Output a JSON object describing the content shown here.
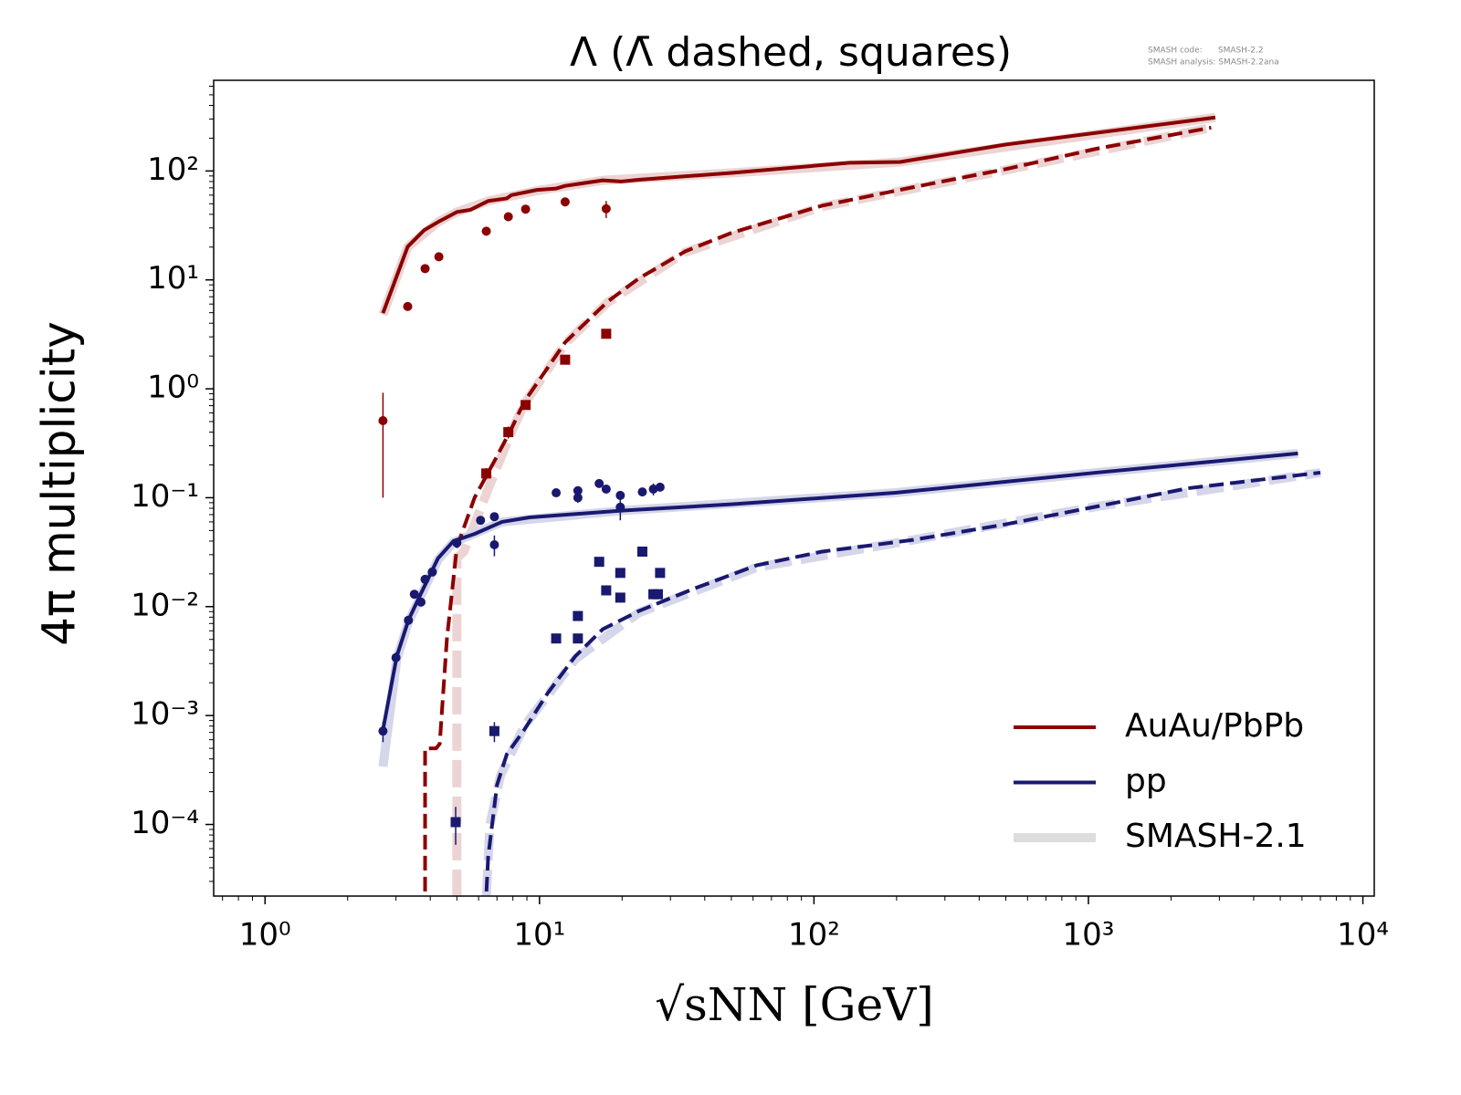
{
  "chart_data": {
    "type": "line",
    "title": "Λ (Λ̄ dashed, squares)",
    "notes": [
      "SMASH code:      SMASH-2.2",
      "SMASH analysis: SMASH-2.2ana"
    ],
    "x_label": "√sNN [GeV]",
    "y_label": "4π multiplicity",
    "log_x": true,
    "log_y": true,
    "xlim": [
      0.65,
      11000
    ],
    "ylim": [
      2.2e-05,
      680
    ],
    "xticks": [
      {
        "value": 1,
        "label": "10⁰"
      },
      {
        "value": 10,
        "label": "10¹"
      },
      {
        "value": 100,
        "label": "10²"
      },
      {
        "value": 1000,
        "label": "10³"
      },
      {
        "value": 10000,
        "label": "10⁴"
      }
    ],
    "yticks": [
      {
        "value": 0.0001,
        "label": "10⁻⁴"
      },
      {
        "value": 0.001,
        "label": "10⁻³"
      },
      {
        "value": 0.01,
        "label": "10⁻²"
      },
      {
        "value": 0.1,
        "label": "10⁻¹"
      },
      {
        "value": 1,
        "label": "10⁰"
      },
      {
        "value": 10,
        "label": "10¹"
      },
      {
        "value": 100,
        "label": "10²"
      }
    ],
    "legend_position": "lower right",
    "legend": [
      {
        "name": "AuAu/PbPb",
        "color": "#8b0000"
      },
      {
        "name": "pp",
        "color": "#191970"
      },
      {
        "name": "SMASH-2.1",
        "color": "#dddddd"
      }
    ],
    "series": [
      {
        "color": "#ecd4d4",
        "line": "solid",
        "thick": true,
        "x": [
          2.69,
          3.31,
          4.27,
          5.0,
          6.5,
          9.8,
          17,
          50,
          206,
          2900
        ],
        "values": [
          4.8,
          20,
          34,
          42,
          53,
          66,
          82,
          96,
          121,
          310
        ]
      },
      {
        "color": "#ecd4d4",
        "line": "dashed",
        "thick": true,
        "x": [
          5.0,
          5.0,
          5.3,
          6.5,
          7.9,
          8.8,
          12.4,
          17.7,
          34,
          107,
          500,
          2800
        ],
        "values": [
          1e-05,
          0.028,
          0.032,
          0.12,
          0.4,
          0.72,
          2.6,
          6.2,
          18,
          47,
          102,
          250
        ]
      },
      {
        "color": "#d6d6ea",
        "line": "solid",
        "thick": true,
        "x": [
          2.69,
          3.02,
          3.33,
          4.27,
          4.86,
          7.3,
          19.8,
          198,
          1070,
          5800
        ],
        "values": [
          0.00034,
          0.0033,
          0.0072,
          0.027,
          0.039,
          0.06,
          0.076,
          0.111,
          0.17,
          0.255
        ]
      },
      {
        "color": "#d6d6ea",
        "line": "dashed",
        "thick": true,
        "x": [
          6.3,
          6.6,
          7.2,
          8.8,
          13.5,
          23,
          62,
          230,
          1070,
          7000
        ],
        "values": [
          1e-05,
          0.0001,
          0.00028,
          0.0008,
          0.0033,
          0.0088,
          0.023,
          0.041,
          0.083,
          0.17
        ]
      },
      {
        "color": "#8b0000",
        "line": "solid",
        "x": [
          2.69,
          3.31,
          3.8,
          4.27,
          5.0,
          5.6,
          6.5,
          7.6,
          7.9,
          9.8,
          11.5,
          12.4,
          17,
          19.8,
          23,
          50,
          135,
          206,
          500,
          2900
        ],
        "values": [
          4.95,
          20.2,
          28.6,
          34,
          42,
          44,
          53,
          56,
          60,
          67,
          69,
          73,
          82,
          80,
          83,
          96,
          119,
          121,
          175,
          310
        ]
      },
      {
        "color": "#8b0000",
        "line": "dashed",
        "x": [
          3.83,
          3.83,
          4.2,
          4.33,
          4.6,
          5.0,
          5.8,
          7.0,
          7.9,
          8.8,
          12.4,
          17.7,
          23,
          34,
          50,
          107,
          230,
          500,
          1070,
          2800
        ],
        "values": [
          1e-05,
          0.0005,
          0.0005,
          0.00055,
          0.0051,
          0.035,
          0.1,
          0.24,
          0.43,
          0.76,
          2.67,
          6.3,
          10.3,
          18.3,
          27,
          48,
          71,
          104,
          160,
          250
        ]
      },
      {
        "color": "#191970",
        "line": "solid",
        "x": [
          2.69,
          3.02,
          3.33,
          3.71,
          4.27,
          4.86,
          5.8,
          7.3,
          9.2,
          19.8,
          50,
          198,
          1070,
          5800
        ],
        "values": [
          0.00074,
          0.0035,
          0.0075,
          0.0134,
          0.0278,
          0.04,
          0.0465,
          0.06,
          0.066,
          0.076,
          0.087,
          0.111,
          0.17,
          0.255
        ]
      },
      {
        "color": "#191970",
        "line": "dashed",
        "x": [
          6.3,
          6.5,
          7.0,
          7.6,
          8.8,
          10.7,
          13.5,
          17,
          23,
          36.5,
          62,
          107,
          230,
          500,
          1070,
          2300,
          7000
        ],
        "values": [
          1e-05,
          5e-05,
          0.00023,
          0.00044,
          0.00074,
          0.0016,
          0.0035,
          0.0062,
          0.0091,
          0.0146,
          0.024,
          0.032,
          0.041,
          0.057,
          0.083,
          0.122,
          0.17
        ]
      },
      {
        "color": "#8b0000",
        "marker": "circle",
        "x": [
          2.69,
          3.31,
          3.83,
          4.3,
          6.4,
          7.7,
          8.9,
          12.4,
          17.5
        ],
        "values": [
          0.51,
          5.7,
          12.7,
          16.3,
          28,
          38,
          44.6,
          52,
          45
        ],
        "errors": [
          0.41,
          null,
          null,
          null,
          2,
          2,
          2,
          4,
          8
        ]
      },
      {
        "color": "#8b0000",
        "marker": "square",
        "x": [
          6.4,
          7.7,
          8.9,
          12.4,
          17.5
        ],
        "values": [
          0.167,
          0.4,
          0.71,
          1.85,
          3.2
        ],
        "errors": [
          0.02,
          0.05,
          null,
          null,
          null
        ]
      },
      {
        "color": "#191970",
        "marker": "circle",
        "x": [
          2.69,
          3.0,
          3.33,
          3.5,
          3.7,
          3.83,
          4.07,
          5.0,
          6.1,
          6.85,
          6.85,
          11.5,
          13.8,
          13.8,
          16.5,
          17.5,
          19.7,
          19.7,
          23.7,
          26.0,
          27.5
        ],
        "values": [
          0.00072,
          0.0034,
          0.0075,
          0.013,
          0.011,
          0.0178,
          0.0208,
          0.0385,
          0.062,
          0.067,
          0.037,
          0.111,
          0.116,
          0.1,
          0.135,
          0.12,
          0.105,
          0.082,
          0.113,
          0.12,
          0.125
        ],
        "errors": [
          0.00015,
          0.0004,
          null,
          null,
          null,
          null,
          null,
          0.004,
          null,
          null,
          0.008,
          null,
          null,
          0.01,
          null,
          null,
          null,
          0.02,
          null,
          0.015,
          null
        ]
      },
      {
        "color": "#191970",
        "marker": "square",
        "x": [
          4.95,
          6.85,
          11.5,
          13.8,
          13.8,
          16.5,
          17.5,
          19.7,
          19.7,
          23.7,
          26.0,
          27.5,
          27.0
        ],
        "values": [
          0.000105,
          0.00072,
          0.0051,
          0.0082,
          0.0051,
          0.0258,
          0.0141,
          0.0204,
          0.0121,
          0.032,
          0.013,
          0.0204,
          0.013
        ],
        "errors": [
          4e-05,
          0.00015,
          null,
          null,
          null,
          null,
          null,
          null,
          null,
          null,
          null,
          null,
          null
        ]
      }
    ]
  }
}
